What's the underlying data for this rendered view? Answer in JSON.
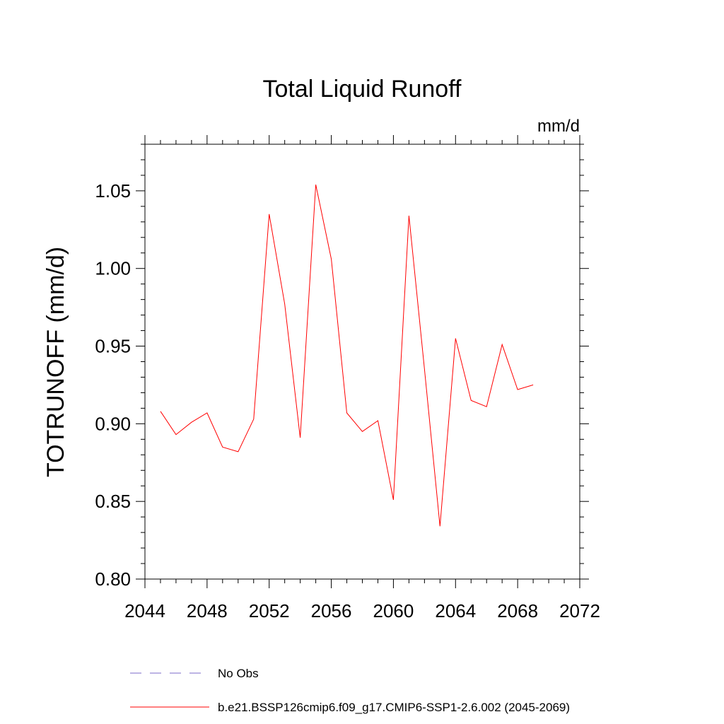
{
  "chart_data": {
    "type": "line",
    "title": "Total Liquid Runoff",
    "units_label": "mm/d",
    "ylabel": "TOTRUNOFF  (mm/d)",
    "xlabel": "",
    "xlim": [
      2044,
      2072
    ],
    "ylim": [
      0.8,
      1.08
    ],
    "x_ticks": [
      2044,
      2048,
      2052,
      2056,
      2060,
      2064,
      2068,
      2072
    ],
    "y_ticks": [
      0.8,
      0.85,
      0.9,
      0.95,
      1.0,
      1.05
    ],
    "x_tick_labels": [
      "2044",
      "2048",
      "2052",
      "2056",
      "2060",
      "2064",
      "2068",
      "2072"
    ],
    "y_tick_labels": [
      "0.80",
      "0.85",
      "0.90",
      "0.95",
      "1.00",
      "1.05"
    ],
    "grid": false,
    "legend_position": "bottom",
    "series": [
      {
        "name": "b.e21.BSSP126cmip6.f09_g17.CMIP6-SSP1-2.6.002 (2045-2069)",
        "color": "#ff0000",
        "dash": "solid",
        "x": [
          2045,
          2046,
          2047,
          2048,
          2049,
          2050,
          2051,
          2052,
          2053,
          2054,
          2055,
          2056,
          2057,
          2058,
          2059,
          2060,
          2061,
          2062,
          2063,
          2064,
          2065,
          2066,
          2067,
          2068,
          2069
        ],
        "y": [
          0.908,
          0.893,
          0.901,
          0.907,
          0.885,
          0.882,
          0.903,
          1.035,
          0.977,
          0.891,
          1.054,
          1.006,
          0.907,
          0.895,
          0.902,
          0.851,
          1.034,
          0.935,
          0.834,
          0.955,
          0.915,
          0.911,
          0.951,
          0.922,
          0.925
        ]
      }
    ],
    "legend": [
      {
        "label": "No Obs",
        "color": "#7b68c8",
        "dash": "dashed"
      },
      {
        "label": "b.e21.BSSP126cmip6.f09_g17.CMIP6-SSP1-2.6.002 (2045-2069)",
        "color": "#ff0000",
        "dash": "solid"
      }
    ]
  }
}
